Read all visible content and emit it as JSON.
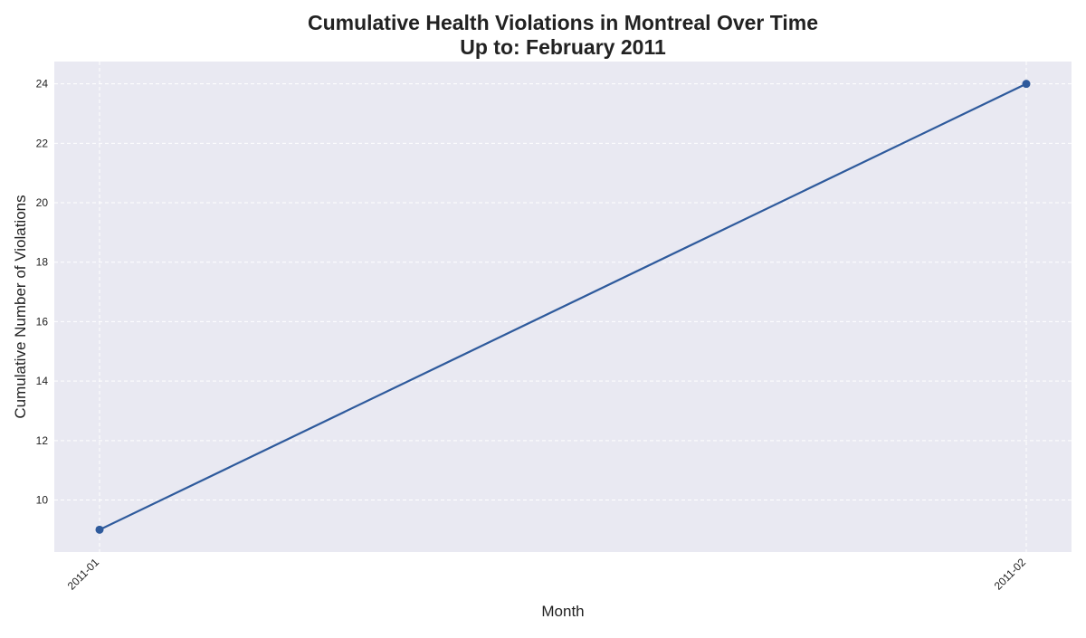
{
  "chart_data": {
    "type": "line",
    "title": "Cumulative Health Violations in Montreal Over Time",
    "subtitle": "Up to: February 2011",
    "xlabel": "Month",
    "ylabel": "Cumulative Number of Violations",
    "x": [
      "2011-01",
      "2011-02"
    ],
    "series": [
      {
        "values": [
          9,
          24
        ],
        "color": "#2e5a9c"
      }
    ],
    "ylim": [
      8.25,
      24.75
    ],
    "yticks": [
      10,
      12,
      14,
      16,
      18,
      20,
      22,
      24
    ],
    "xticks": [
      "2011-01",
      "2011-02"
    ],
    "grid": true,
    "colors": {
      "plot_background": "#e9e9f2",
      "grid": "#ffffff",
      "line": "#2e5a9c",
      "text": "#222222"
    }
  }
}
